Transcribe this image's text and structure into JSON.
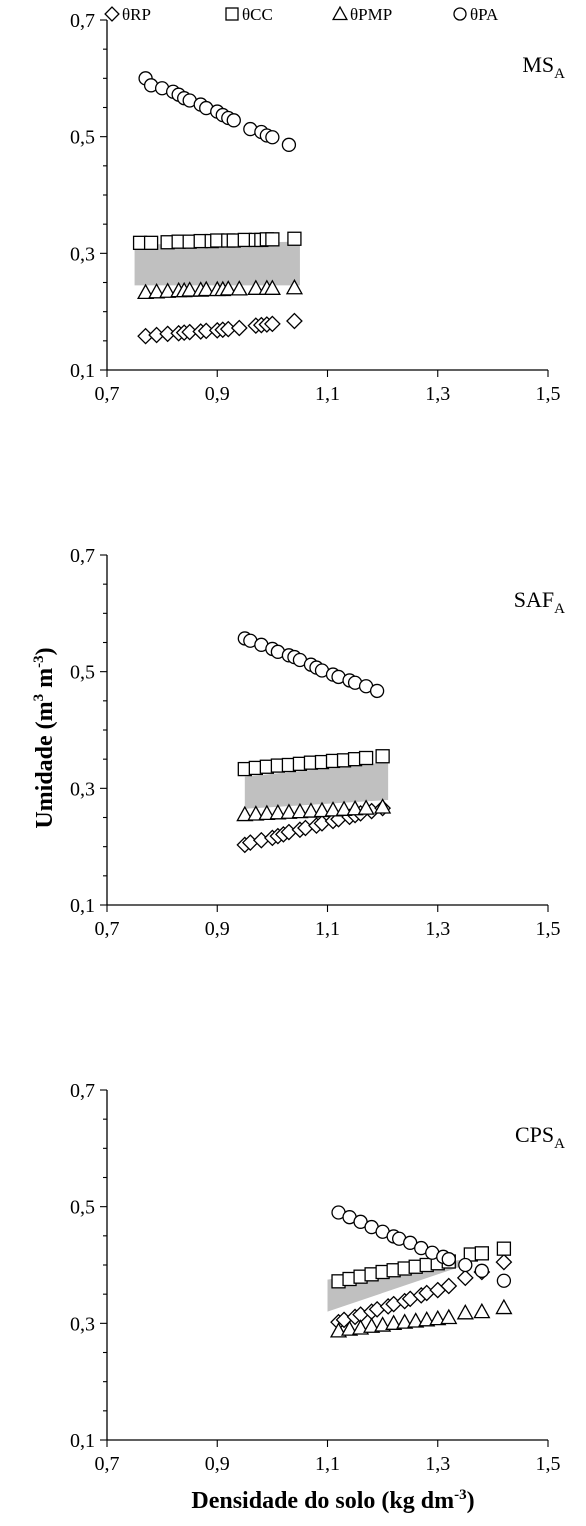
{
  "figure": {
    "xlabel": "Densidade do solo (kg dm",
    "xlabel_sup": "-3",
    "xlabel_end": ")",
    "ylabel": "Umidade (m",
    "ylabel_sup1": "3",
    "ylabel_mid": " m",
    "ylabel_sup2": "-3",
    "ylabel_end": ")"
  },
  "legend": [
    {
      "marker": "diamond",
      "label": "θRP"
    },
    {
      "marker": "square",
      "label": "θCC"
    },
    {
      "marker": "triangle",
      "label": "θPMP"
    },
    {
      "marker": "circle",
      "label": "θPA"
    }
  ],
  "colors": {
    "band": "#c0c0c0",
    "marker_fill": "#ffffff",
    "stroke": "#000000"
  },
  "chart_data": [
    {
      "type": "scatter",
      "panel_label": "MS",
      "panel_label_sub": "A",
      "xlim": [
        0.7,
        1.5
      ],
      "ylim": [
        0.1,
        0.7
      ],
      "xticks": [
        "0,7",
        "0,9",
        "1,1",
        "1,3",
        "1,5"
      ],
      "yticks": [
        "0,1",
        "0,3",
        "0,5",
        "0,7"
      ],
      "shaded_band": {
        "x": [
          0.75,
          1.05
        ],
        "upper": [
          0.315,
          0.32
        ],
        "lower": [
          0.245,
          0.245
        ]
      },
      "series": [
        {
          "name": "θRP",
          "marker": "diamond",
          "x": [
            0.77,
            0.79,
            0.81,
            0.83,
            0.84,
            0.85,
            0.87,
            0.88,
            0.9,
            0.91,
            0.92,
            0.94,
            0.97,
            0.98,
            0.99,
            1.0,
            1.04
          ],
          "y": [
            0.158,
            0.16,
            0.162,
            0.163,
            0.164,
            0.165,
            0.166,
            0.167,
            0.168,
            0.169,
            0.17,
            0.172,
            0.176,
            0.177,
            0.178,
            0.179,
            0.184
          ]
        },
        {
          "name": "θCC",
          "marker": "square",
          "x": [
            0.76,
            0.78,
            0.81,
            0.83,
            0.85,
            0.87,
            0.89,
            0.9,
            0.92,
            0.93,
            0.95,
            0.97,
            0.98,
            0.99,
            1.0,
            1.04
          ],
          "y": [
            0.318,
            0.318,
            0.319,
            0.32,
            0.32,
            0.321,
            0.321,
            0.322,
            0.322,
            0.322,
            0.323,
            0.323,
            0.323,
            0.324,
            0.324,
            0.325
          ]
        },
        {
          "name": "θPMP",
          "marker": "triangle",
          "x": [
            0.77,
            0.79,
            0.81,
            0.83,
            0.84,
            0.85,
            0.87,
            0.88,
            0.9,
            0.91,
            0.92,
            0.94,
            0.97,
            0.99,
            1.0,
            1.04
          ],
          "y": [
            0.233,
            0.234,
            0.235,
            0.236,
            0.236,
            0.237,
            0.237,
            0.238,
            0.238,
            0.238,
            0.239,
            0.239,
            0.24,
            0.24,
            0.24,
            0.241
          ]
        },
        {
          "name": "θPA",
          "marker": "circle",
          "x": [
            0.77,
            0.78,
            0.8,
            0.82,
            0.83,
            0.84,
            0.85,
            0.87,
            0.88,
            0.9,
            0.91,
            0.92,
            0.93,
            0.96,
            0.98,
            0.99,
            1.0,
            1.03
          ],
          "y": [
            0.6,
            0.588,
            0.583,
            0.577,
            0.572,
            0.566,
            0.562,
            0.555,
            0.549,
            0.543,
            0.537,
            0.532,
            0.528,
            0.513,
            0.508,
            0.502,
            0.499,
            0.486
          ]
        }
      ]
    },
    {
      "type": "scatter",
      "panel_label": "SAF",
      "panel_label_sub": "A",
      "xlim": [
        0.7,
        1.5
      ],
      "ylim": [
        0.1,
        0.7
      ],
      "xticks": [
        "0,7",
        "0,9",
        "1,1",
        "1,3",
        "1,5"
      ],
      "yticks": [
        "0,1",
        "0,3",
        "0,5",
        "0,7"
      ],
      "shaded_band": {
        "x": [
          0.95,
          1.21
        ],
        "upper": [
          0.32,
          0.345
        ],
        "lower": [
          0.265,
          0.28
        ]
      },
      "series": [
        {
          "name": "θRP",
          "marker": "diamond",
          "x": [
            0.95,
            0.96,
            0.98,
            1.0,
            1.01,
            1.02,
            1.03,
            1.05,
            1.06,
            1.08,
            1.09,
            1.11,
            1.12,
            1.14,
            1.15,
            1.16,
            1.18,
            1.2
          ],
          "y": [
            0.203,
            0.207,
            0.211,
            0.215,
            0.218,
            0.221,
            0.225,
            0.229,
            0.232,
            0.236,
            0.24,
            0.244,
            0.247,
            0.251,
            0.254,
            0.257,
            0.261,
            0.266
          ]
        },
        {
          "name": "θCC",
          "marker": "square",
          "x": [
            0.95,
            0.97,
            0.99,
            1.01,
            1.03,
            1.05,
            1.07,
            1.09,
            1.11,
            1.13,
            1.15,
            1.17,
            1.2
          ],
          "y": [
            0.333,
            0.335,
            0.337,
            0.339,
            0.34,
            0.342,
            0.344,
            0.345,
            0.347,
            0.348,
            0.35,
            0.352,
            0.355
          ]
        },
        {
          "name": "θPMP",
          "marker": "triangle",
          "x": [
            0.95,
            0.97,
            0.99,
            1.01,
            1.03,
            1.05,
            1.07,
            1.09,
            1.11,
            1.13,
            1.15,
            1.17,
            1.2
          ],
          "y": [
            0.255,
            0.256,
            0.257,
            0.258,
            0.259,
            0.26,
            0.261,
            0.262,
            0.263,
            0.264,
            0.265,
            0.266,
            0.268
          ]
        },
        {
          "name": "θPA",
          "marker": "circle",
          "x": [
            0.95,
            0.96,
            0.98,
            1.0,
            1.01,
            1.03,
            1.04,
            1.05,
            1.07,
            1.08,
            1.09,
            1.11,
            1.12,
            1.14,
            1.15,
            1.17,
            1.19
          ],
          "y": [
            0.557,
            0.553,
            0.546,
            0.539,
            0.534,
            0.528,
            0.525,
            0.52,
            0.512,
            0.507,
            0.502,
            0.495,
            0.491,
            0.485,
            0.481,
            0.475,
            0.467
          ]
        }
      ]
    },
    {
      "type": "scatter",
      "panel_label": "CPS",
      "panel_label_sub": "A",
      "xlim": [
        0.7,
        1.5
      ],
      "ylim": [
        0.1,
        0.7
      ],
      "xticks": [
        "0,7",
        "0,9",
        "1,1",
        "1,3",
        "1,5"
      ],
      "yticks": [
        "0,1",
        "0,3",
        "0,5",
        "0,7"
      ],
      "shaded_band": {
        "x": [
          1.1,
          1.35
        ],
        "upper": [
          0.375,
          0.41
        ],
        "lower": [
          0.32,
          0.4
        ]
      },
      "series": [
        {
          "name": "θRP",
          "marker": "diamond",
          "x": [
            1.12,
            1.13,
            1.15,
            1.16,
            1.18,
            1.19,
            1.21,
            1.22,
            1.24,
            1.25,
            1.27,
            1.28,
            1.3,
            1.32,
            1.35,
            1.38,
            1.42
          ],
          "y": [
            0.302,
            0.306,
            0.311,
            0.315,
            0.32,
            0.324,
            0.329,
            0.333,
            0.338,
            0.342,
            0.348,
            0.352,
            0.357,
            0.364,
            0.378,
            0.388,
            0.405
          ]
        },
        {
          "name": "θCC",
          "marker": "square",
          "x": [
            1.12,
            1.14,
            1.16,
            1.18,
            1.2,
            1.22,
            1.24,
            1.26,
            1.28,
            1.3,
            1.32,
            1.36,
            1.38,
            1.42
          ],
          "y": [
            0.372,
            0.376,
            0.38,
            0.384,
            0.388,
            0.391,
            0.394,
            0.397,
            0.4,
            0.403,
            0.406,
            0.418,
            0.42,
            0.428
          ]
        },
        {
          "name": "θPMP",
          "marker": "triangle",
          "x": [
            1.12,
            1.14,
            1.16,
            1.18,
            1.2,
            1.22,
            1.24,
            1.26,
            1.28,
            1.3,
            1.32,
            1.35,
            1.38,
            1.42
          ],
          "y": [
            0.287,
            0.29,
            0.292,
            0.295,
            0.297,
            0.3,
            0.302,
            0.304,
            0.306,
            0.308,
            0.31,
            0.318,
            0.32,
            0.327
          ]
        },
        {
          "name": "θPA",
          "marker": "circle",
          "x": [
            1.12,
            1.14,
            1.16,
            1.18,
            1.2,
            1.22,
            1.23,
            1.25,
            1.27,
            1.29,
            1.31,
            1.32,
            1.35,
            1.38,
            1.42
          ],
          "y": [
            0.49,
            0.482,
            0.474,
            0.465,
            0.457,
            0.449,
            0.445,
            0.438,
            0.429,
            0.421,
            0.414,
            0.41,
            0.4,
            0.39,
            0.373
          ]
        }
      ]
    }
  ]
}
